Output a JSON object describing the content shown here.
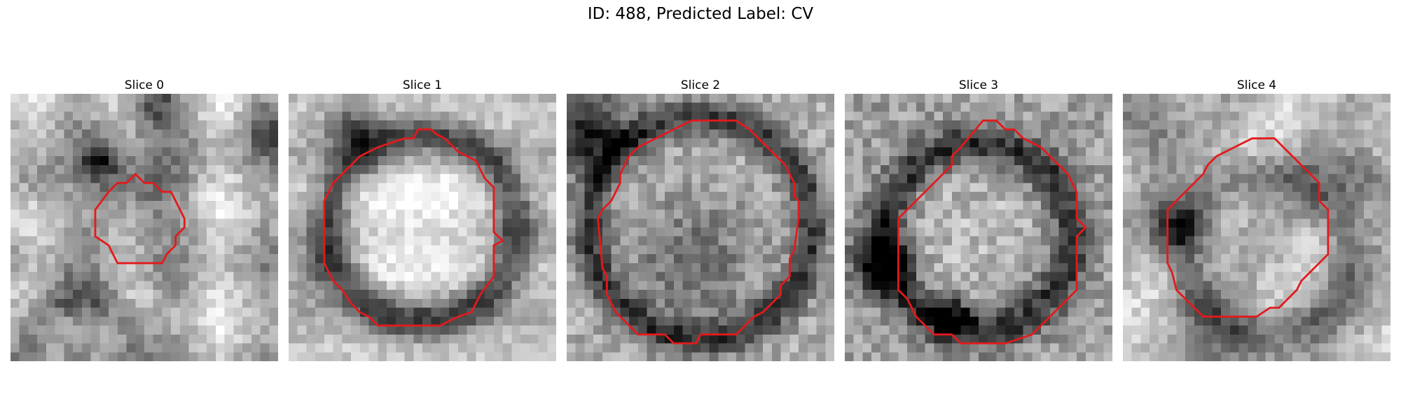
{
  "figure": {
    "title": "ID: 488, Predicted Label: CV"
  },
  "colors": {
    "contour": "#e31a1c",
    "background": "#ffffff"
  },
  "panels": [
    {
      "title": "Slice 0",
      "image": "grayscale-mri-patch",
      "overlay": "red-contour-outline"
    },
    {
      "title": "Slice 1",
      "image": "grayscale-mri-patch",
      "overlay": "red-contour-outline"
    },
    {
      "title": "Slice 2",
      "image": "grayscale-mri-patch",
      "overlay": "red-contour-outline"
    },
    {
      "title": "Slice 3",
      "image": "grayscale-mri-patch",
      "overlay": "red-contour-outline"
    },
    {
      "title": "Slice 4",
      "image": "grayscale-mri-patch",
      "overlay": "red-contour-outline"
    }
  ]
}
